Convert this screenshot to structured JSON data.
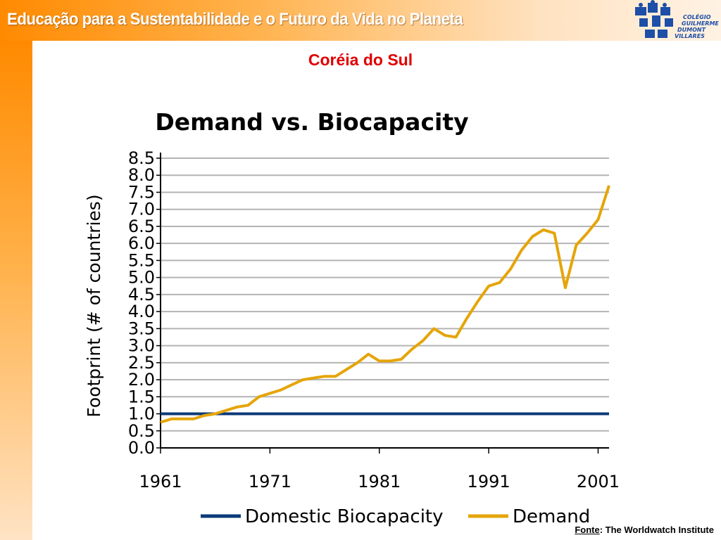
{
  "header": {
    "title": "Educação para a Sustentabilidade e o Futuro da Vida no Planeta",
    "logo_text": [
      "COLÉGIO",
      "GUILHERME",
      "DUMONT",
      "VILLARES"
    ],
    "colors": {
      "band_start": "#ff8a00",
      "band_end": "#fff2e4",
      "logo_blue": "#1d4ea8"
    }
  },
  "slide_title": "Coréia do Sul",
  "chart_data": {
    "type": "line",
    "title": "Demand vs. Biocapacity",
    "xlabel": "",
    "ylabel": "Footprint (# of countries)",
    "xlim": [
      1961,
      2002
    ],
    "ylim": [
      0,
      8.5
    ],
    "x_ticks": [
      "1961",
      "1971",
      "1981",
      "1991",
      "2001"
    ],
    "y_ticks": [
      "0.0",
      "0.5",
      "1.0",
      "1.5",
      "2.0",
      "2.5",
      "3.0",
      "3.5",
      "4.0",
      "4.5",
      "5.0",
      "5.5",
      "6.0",
      "6.5",
      "7.0",
      "7.5",
      "8.0",
      "8.5"
    ],
    "grid": true,
    "legend_position": "bottom",
    "x": [
      1961,
      1962,
      1963,
      1964,
      1965,
      1966,
      1967,
      1968,
      1969,
      1970,
      1971,
      1972,
      1973,
      1974,
      1975,
      1976,
      1977,
      1978,
      1979,
      1980,
      1981,
      1982,
      1983,
      1984,
      1985,
      1986,
      1987,
      1988,
      1989,
      1990,
      1991,
      1992,
      1993,
      1994,
      1995,
      1996,
      1997,
      1998,
      1999,
      2000,
      2001,
      2002
    ],
    "series": [
      {
        "name": "Domestic Biocapacity",
        "color": "#0c3a78",
        "values": [
          1.0,
          1.0,
          1.0,
          1.0,
          1.0,
          1.0,
          1.0,
          1.0,
          1.0,
          1.0,
          1.0,
          1.0,
          1.0,
          1.0,
          1.0,
          1.0,
          1.0,
          1.0,
          1.0,
          1.0,
          1.0,
          1.0,
          1.0,
          1.0,
          1.0,
          1.0,
          1.0,
          1.0,
          1.0,
          1.0,
          1.0,
          1.0,
          1.0,
          1.0,
          1.0,
          1.0,
          1.0,
          1.0,
          1.0,
          1.0,
          1.0,
          1.0
        ]
      },
      {
        "name": "Demand",
        "color": "#e5a50a",
        "values": [
          0.75,
          0.85,
          0.85,
          0.85,
          0.95,
          1.0,
          1.1,
          1.2,
          1.25,
          1.5,
          1.6,
          1.7,
          1.85,
          2.0,
          2.05,
          2.1,
          2.1,
          2.3,
          2.5,
          2.75,
          2.55,
          2.55,
          2.6,
          2.9,
          3.15,
          3.5,
          3.3,
          3.25,
          3.8,
          4.3,
          4.75,
          4.85,
          5.25,
          5.8,
          6.2,
          6.4,
          6.3,
          4.7,
          5.95,
          6.3,
          6.7,
          7.7
        ]
      }
    ]
  },
  "source": {
    "label": "Fonte",
    "text": ": The Worldwatch Institute"
  }
}
